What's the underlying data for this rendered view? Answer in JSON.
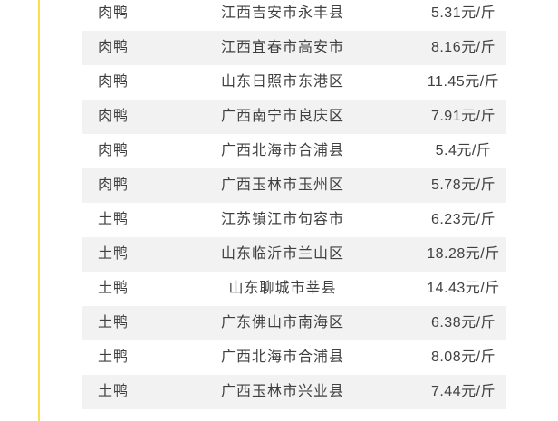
{
  "colors": {
    "accent": "#fcdf4b",
    "row_alt": "#f2f2f2",
    "text": "#404040",
    "background": "#ffffff"
  },
  "table": {
    "rows": [
      {
        "breed": "肉鸭",
        "location": "江西吉安市永丰县",
        "price": "5.31元/斤"
      },
      {
        "breed": "肉鸭",
        "location": "江西宜春市高安市",
        "price": "8.16元/斤"
      },
      {
        "breed": "肉鸭",
        "location": "山东日照市东港区",
        "price": "11.45元/斤"
      },
      {
        "breed": "肉鸭",
        "location": "广西南宁市良庆区",
        "price": "7.91元/斤"
      },
      {
        "breed": "肉鸭",
        "location": "广西北海市合浦县",
        "price": "5.4元/斤"
      },
      {
        "breed": "肉鸭",
        "location": "广西玉林市玉州区",
        "price": "5.78元/斤"
      },
      {
        "breed": "土鸭",
        "location": "江苏镇江市句容市",
        "price": "6.23元/斤"
      },
      {
        "breed": "土鸭",
        "location": "山东临沂市兰山区",
        "price": "18.28元/斤"
      },
      {
        "breed": "土鸭",
        "location": "山东聊城市莘县",
        "price": "14.43元/斤"
      },
      {
        "breed": "土鸭",
        "location": "广东佛山市南海区",
        "price": "6.38元/斤"
      },
      {
        "breed": "土鸭",
        "location": "广西北海市合浦县",
        "price": "8.08元/斤"
      },
      {
        "breed": "土鸭",
        "location": "广西玉林市兴业县",
        "price": "7.44元/斤"
      }
    ]
  }
}
